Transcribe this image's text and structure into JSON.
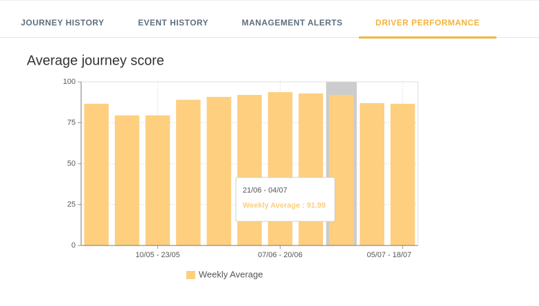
{
  "tabs": [
    "JOURNEY HISTORY",
    "EVENT HISTORY",
    "MANAGEMENT ALERTS",
    "DRIVER PERFORMANCE"
  ],
  "active_tab": 3,
  "chart_data": {
    "type": "bar",
    "title": "Average journey score",
    "categories": [
      null,
      null,
      "10/05 - 23/05",
      null,
      null,
      null,
      "07/06 - 20/06",
      null,
      null,
      null,
      "05/07 - 18/07"
    ],
    "series": [
      {
        "name": "Weekly Average",
        "color": "#fdcf7f",
        "values": [
          86.6,
          79.5,
          79.5,
          89,
          90.8,
          92,
          93.7,
          92.9,
          91.99,
          87,
          86.6
        ]
      }
    ],
    "ylim": [
      0,
      100
    ],
    "yticks": [
      0,
      25,
      50,
      75,
      100
    ],
    "grid": true,
    "highlight": 8,
    "tooltip": {
      "title": "21/06 - 04/07",
      "label": "Weekly Average : 91.99"
    }
  }
}
